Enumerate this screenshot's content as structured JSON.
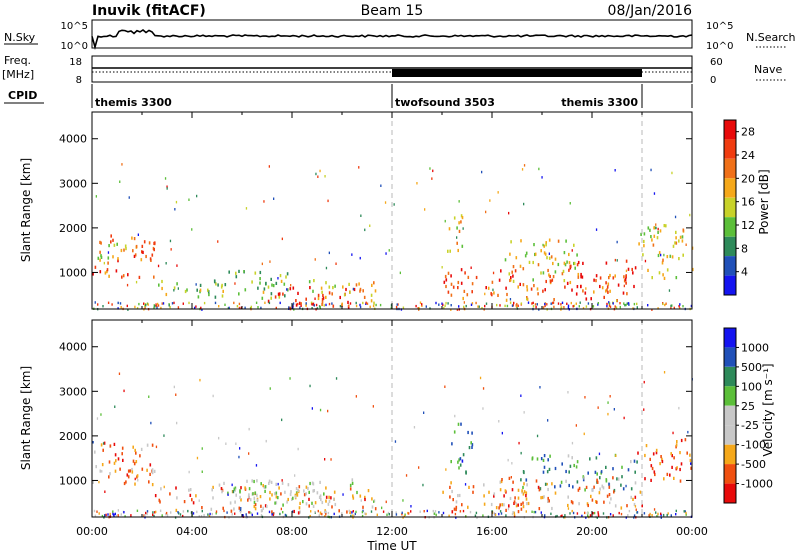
{
  "header": {
    "station": "Inuvik (fitACF)",
    "beam": "Beam 15",
    "date": "08/Jan/2016"
  },
  "panels": {
    "nsky_label": "N.Sky",
    "nsky_ticks": [
      "10^5",
      "10^0"
    ],
    "nsearch_label": "N.Search",
    "nsearch_ticks": [
      "10^5",
      "10^0"
    ],
    "freq_label": "Freq.",
    "freq_unit": "[MHz]",
    "freq_ticks": [
      "18",
      "8"
    ],
    "nave_label": "Nave",
    "nave_ticks": [
      "60",
      "0"
    ],
    "cpid_label": "CPID"
  },
  "cpid_segments": [
    {
      "label": "themis 3300",
      "start_h": 0,
      "end_h": 12
    },
    {
      "label": "twofsound 3503",
      "start_h": 12,
      "end_h": 22
    },
    {
      "label": "themis 3300",
      "start_h": 22,
      "end_h": 24
    }
  ],
  "colors": {
    "power": [
      "#1414f0",
      "#2050b8",
      "#2e8a5a",
      "#5cbf3a",
      "#c8d22a",
      "#f5a81a",
      "#f07018",
      "#f03c10",
      "#e80a0a"
    ],
    "velocity": [
      "#e80a0a",
      "#f05010",
      "#f5a81a",
      "#c8c8c8",
      "#c8c8c8",
      "#5cbf3a",
      "#2e8a5a",
      "#2050b8",
      "#1414f0"
    ],
    "ground_scatter": "#c8c8c8"
  },
  "chart_data": [
    {
      "type": "heatmap",
      "quantity": "power",
      "title": "",
      "xlabel": "",
      "ylabel": "Slant Range [km]",
      "xlim": [
        0,
        24
      ],
      "ylim": [
        180,
        4600
      ],
      "x_ticks": [
        "00:00",
        "04:00",
        "08:00",
        "12:00",
        "16:00",
        "20:00",
        "00:00"
      ],
      "y_ticks": [
        1000,
        2000,
        3000,
        4000
      ],
      "colorbar_label": "Power [dB]",
      "colorbar_ticks": [
        "4",
        "8",
        "12",
        "16",
        "20",
        "24",
        "28"
      ],
      "colorbar_range": [
        0,
        30
      ],
      "regions": [
        {
          "t0": 0.0,
          "t1": 2.5,
          "r0": 900,
          "r1": 1900,
          "level": 0.75
        },
        {
          "t0": 0.2,
          "t1": 1.8,
          "r0": 1300,
          "r1": 1700,
          "level": 0.5
        },
        {
          "t0": 2.6,
          "t1": 8.0,
          "r0": 450,
          "r1": 850,
          "level": 0.45
        },
        {
          "t0": 4.8,
          "t1": 7.8,
          "r0": 700,
          "r1": 1100,
          "level": 0.35
        },
        {
          "t0": 7.0,
          "t1": 10.5,
          "r0": 250,
          "r1": 700,
          "level": 0.9
        },
        {
          "t0": 8.5,
          "t1": 11.5,
          "r0": 300,
          "r1": 900,
          "level": 0.6
        },
        {
          "t0": 14.2,
          "t1": 15.0,
          "r0": 1500,
          "r1": 2400,
          "level": 0.6
        },
        {
          "t0": 14.0,
          "t1": 17.0,
          "r0": 400,
          "r1": 1100,
          "level": 0.8
        },
        {
          "t0": 16.5,
          "t1": 19.5,
          "r0": 800,
          "r1": 1800,
          "level": 0.55
        },
        {
          "t0": 17.0,
          "t1": 21.5,
          "r0": 400,
          "r1": 1000,
          "level": 0.75
        },
        {
          "t0": 19.0,
          "t1": 21.8,
          "r0": 700,
          "r1": 1300,
          "level": 0.95
        },
        {
          "t0": 21.8,
          "t1": 24.0,
          "r0": 900,
          "r1": 2100,
          "level": 0.55
        }
      ]
    },
    {
      "type": "heatmap",
      "quantity": "velocity",
      "title": "",
      "xlabel": "Time UT",
      "ylabel": "Slant Range [km]",
      "xlim": [
        0,
        24
      ],
      "ylim": [
        180,
        4600
      ],
      "x_ticks": [
        "00:00",
        "04:00",
        "08:00",
        "12:00",
        "16:00",
        "20:00",
        "00:00"
      ],
      "y_ticks": [
        1000,
        2000,
        3000,
        4000
      ],
      "colorbar_label": "Velocity [m s⁻¹]",
      "colorbar_ticks": [
        "1000",
        "500",
        "100",
        "25",
        "-25",
        "-100",
        "-500",
        "-1000"
      ],
      "colorbar_range": [
        -1000,
        1000
      ],
      "regions": [
        {
          "t0": 0.0,
          "t1": 2.5,
          "r0": 1100,
          "r1": 1900,
          "level": 0.2
        },
        {
          "t0": 0.0,
          "t1": 2.5,
          "r0": 900,
          "r1": 1300,
          "level": 0.3
        },
        {
          "t0": 2.5,
          "t1": 11.5,
          "r0": 300,
          "r1": 900,
          "level": 0.25
        },
        {
          "t0": 5.0,
          "t1": 9.0,
          "r0": 700,
          "r1": 1000,
          "level": 0.5
        },
        {
          "t0": 5.5,
          "t1": 11.0,
          "r0": 450,
          "r1": 1050,
          "level": 0.45
        },
        {
          "t0": 14.0,
          "t1": 17.5,
          "r0": 300,
          "r1": 1000,
          "level": 0.22
        },
        {
          "t0": 14.2,
          "t1": 15.2,
          "r0": 1200,
          "r1": 2300,
          "level": 0.75
        },
        {
          "t0": 17.0,
          "t1": 21.8,
          "r0": 800,
          "r1": 1600,
          "level": 0.7
        },
        {
          "t0": 16.0,
          "t1": 22.0,
          "r0": 400,
          "r1": 1100,
          "level": 0.25
        },
        {
          "t0": 21.8,
          "t1": 24.0,
          "r0": 1000,
          "r1": 2000,
          "level": 0.15
        }
      ]
    }
  ]
}
